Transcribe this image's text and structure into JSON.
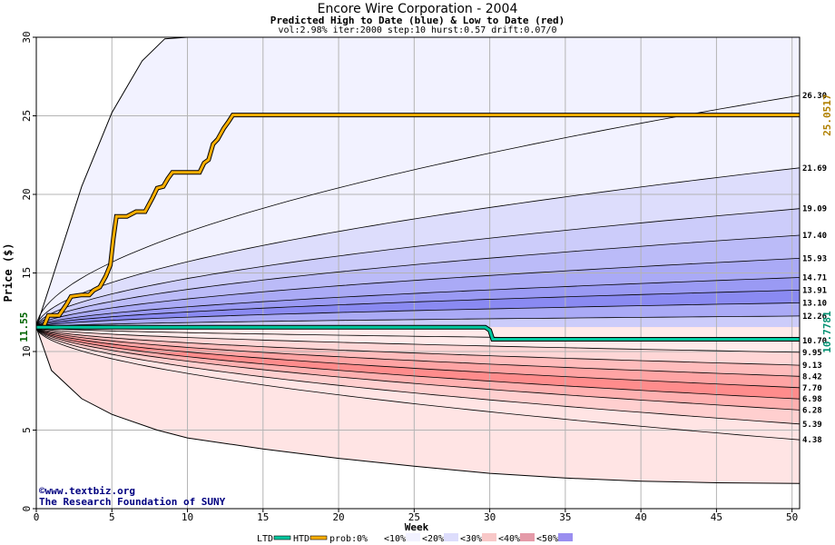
{
  "title": "Encore Wire Corporation - 2004",
  "subtitle": "Predicted High to Date (blue) &  Low to Date (red)",
  "params": "vol:2.98% iter:2000 step:10 hurst:0.57 drift:0.07/0",
  "watermark": [
    "©www.textbiz.org",
    "The Research Foundation of SUNY"
  ],
  "chart_data": {
    "type": "area",
    "xlabel": "Week",
    "ylabel": "Price ($)",
    "xlim": [
      0,
      50.5
    ],
    "ylim": [
      0,
      30
    ],
    "x_ticks": [
      0,
      5,
      10,
      15,
      20,
      25,
      30,
      35,
      40,
      45,
      50
    ],
    "y_ticks": [
      0,
      5,
      10,
      15,
      20,
      25,
      30
    ],
    "start_price_label": "11.55",
    "start_price": 11.55,
    "grid": true,
    "upper_bands": [
      {
        "end_label": "26.30",
        "end": 26.3,
        "color": "#f2f2ff"
      },
      {
        "end_label": "21.69",
        "end": 21.69,
        "color": "#ddddfc"
      },
      {
        "end_label": "19.09",
        "end": 19.09,
        "color": "#ccccfa"
      },
      {
        "end_label": "17.40",
        "end": 17.4,
        "color": "#bbbbf8"
      },
      {
        "end_label": "15.93",
        "end": 15.93,
        "color": "#aaaaf6"
      },
      {
        "end_label": "14.71",
        "end": 14.71,
        "color": "#9a9af4"
      },
      {
        "end_label": "13.91",
        "end": 13.91,
        "color": "#8a8af2"
      },
      {
        "end_label": "13.10",
        "end": 13.1,
        "color": "#aaaaf6"
      },
      {
        "end_label": "12.26",
        "end": 12.26,
        "color": "#ccccfa"
      },
      {
        "end_label": "10.70",
        "end": 10.7,
        "color": "#ffffff"
      }
    ],
    "lower_bands": [
      {
        "end_label": "9.95",
        "end": 9.95,
        "color": "#ffeaea"
      },
      {
        "end_label": "9.13",
        "end": 9.13,
        "color": "#ffd6d6"
      },
      {
        "end_label": "8.42",
        "end": 8.42,
        "color": "#ffbcbc"
      },
      {
        "end_label": "7.70",
        "end": 7.7,
        "color": "#ffa4a4"
      },
      {
        "end_label": "6.98",
        "end": 6.98,
        "color": "#ff8c8c"
      },
      {
        "end_label": "6.28",
        "end": 6.28,
        "color": "#ffb0b0"
      },
      {
        "end_label": "5.39",
        "end": 5.39,
        "color": "#ffcfcf"
      },
      {
        "end_label": "4.38",
        "end": 4.38,
        "color": "#ffe4e4"
      }
    ],
    "outer_upper": {
      "x": [
        0,
        1,
        3,
        5,
        7,
        8.5,
        10
      ],
      "y": [
        11.55,
        14.5,
        20.5,
        25.2,
        28.5,
        29.9,
        30
      ]
    },
    "outer_lower": {
      "x": [
        0,
        1,
        3,
        5,
        8,
        10,
        15,
        20,
        25,
        30,
        35,
        40,
        45,
        50.5
      ],
      "y": [
        11.55,
        8.8,
        7.0,
        6.0,
        5.0,
        4.5,
        3.8,
        3.2,
        2.7,
        2.25,
        1.95,
        1.75,
        1.65,
        1.6
      ]
    },
    "htd_value_label": "25.0517",
    "htd": {
      "name": "HTD",
      "color": "#ffb000",
      "x": [
        0,
        0.5,
        0.8,
        1.5,
        2.0,
        2.3,
        3.0,
        3.5,
        3.8,
        4.2,
        4.6,
        4.9,
        5.1,
        5.3,
        6.0,
        6.6,
        7.2,
        7.7,
        8.0,
        8.4,
        8.7,
        9.0,
        10.0,
        10.8,
        11.1,
        11.4,
        11.7,
        12.0,
        12.4,
        12.7,
        13.0,
        50.5
      ],
      "y": [
        11.55,
        11.6,
        12.3,
        12.3,
        13.0,
        13.5,
        13.6,
        13.6,
        13.9,
        14.1,
        14.8,
        15.5,
        17.2,
        18.6,
        18.6,
        18.9,
        18.9,
        19.8,
        20.4,
        20.5,
        21.0,
        21.4,
        21.4,
        21.4,
        22.0,
        22.2,
        23.2,
        23.5,
        24.2,
        24.6,
        25.05,
        25.05
      ]
    },
    "ltd_value_label": "10.7781",
    "ltd": {
      "name": "LTD",
      "color": "#00c8a0",
      "x": [
        0,
        29.7,
        30.0,
        30.2,
        50.5
      ],
      "y": [
        11.55,
        11.55,
        11.35,
        10.78,
        10.78
      ]
    },
    "legend": {
      "placement": "bottom",
      "items": [
        {
          "label": "LTD",
          "color": "#00c8a0"
        },
        {
          "label": "HTD",
          "color": "#ffb000"
        }
      ],
      "prob_label": "prob:",
      "prob_items": [
        {
          "label": "0%",
          "color": "#ffffff"
        },
        {
          "label": "<10%",
          "color": "#f2f2ff"
        },
        {
          "label": "<20%",
          "color": "#ddddfc"
        },
        {
          "label": "<30%",
          "color": "#f8c8c8"
        },
        {
          "label": "<40%",
          "color": "#e49aa8"
        },
        {
          "label": "<50%",
          "color": "#9a8ef0"
        }
      ]
    }
  }
}
